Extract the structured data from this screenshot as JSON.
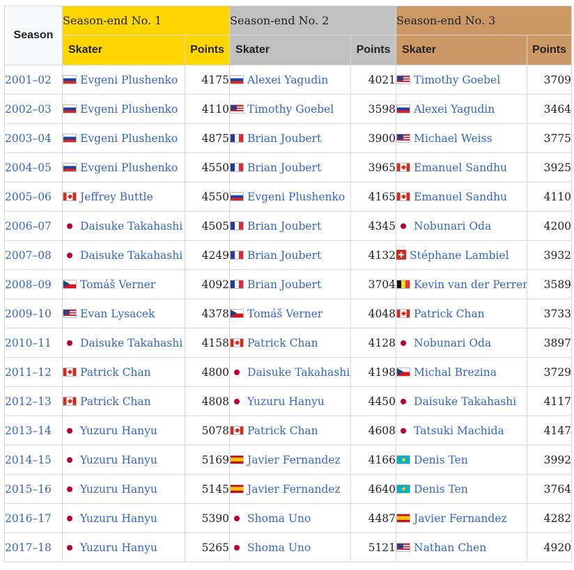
{
  "headers": {
    "season": "Season",
    "no1": "Season-end No. 1",
    "no2": "Season-end No. 2",
    "no3": "Season-end No. 3",
    "skater": "Skater",
    "points": "Points"
  },
  "colors": {
    "gold": "#ffd700",
    "silver": "#c0c0c0",
    "bronze": "#cc9966",
    "link": "#3366cc"
  },
  "rows": [
    {
      "season": "2001–02",
      "s1": {
        "name": "Evgeni Plushenko",
        "flag": "rus",
        "points": "4175"
      },
      "s2": {
        "name": "Alexei Yagudin",
        "flag": "rus",
        "points": "4021"
      },
      "s3": {
        "name": "Timothy Goebel",
        "flag": "usa",
        "points": "3709"
      }
    },
    {
      "season": "2002–03",
      "s1": {
        "name": "Evgeni Plushenko",
        "flag": "rus",
        "points": "4110"
      },
      "s2": {
        "name": "Timothy Goebel",
        "flag": "usa",
        "points": "3598"
      },
      "s3": {
        "name": "Alexei Yagudin",
        "flag": "rus",
        "points": "3464"
      }
    },
    {
      "season": "2003–04",
      "s1": {
        "name": "Evgeni Plushenko",
        "flag": "rus",
        "points": "4875"
      },
      "s2": {
        "name": "Brian Joubert",
        "flag": "fra",
        "points": "3900"
      },
      "s3": {
        "name": "Michael Weiss",
        "flag": "usa",
        "points": "3775"
      }
    },
    {
      "season": "2004–05",
      "s1": {
        "name": "Evgeni Plushenko",
        "flag": "rus",
        "points": "4550"
      },
      "s2": {
        "name": "Brian Joubert",
        "flag": "fra",
        "points": "3965"
      },
      "s3": {
        "name": "Emanuel Sandhu",
        "flag": "can",
        "points": "3925"
      }
    },
    {
      "season": "2005–06",
      "s1": {
        "name": "Jeffrey Buttle",
        "flag": "can",
        "points": "4550"
      },
      "s2": {
        "name": "Evgeni Plushenko",
        "flag": "rus",
        "points": "4165"
      },
      "s3": {
        "name": "Emanuel Sandhu",
        "flag": "can",
        "points": "4110"
      }
    },
    {
      "season": "2006–07",
      "s1": {
        "name": "Daisuke Takahashi",
        "flag": "jpn",
        "points": "4505"
      },
      "s2": {
        "name": "Brian Joubert",
        "flag": "fra",
        "points": "4345"
      },
      "s3": {
        "name": "Nobunari Oda",
        "flag": "jpn",
        "points": "4200"
      }
    },
    {
      "season": "2007–08",
      "s1": {
        "name": "Daisuke Takahashi",
        "flag": "jpn",
        "points": "4249"
      },
      "s2": {
        "name": "Brian Joubert",
        "flag": "fra",
        "points": "4132"
      },
      "s3": {
        "name": "Stéphane Lambiel",
        "flag": "sui",
        "points": "3932"
      }
    },
    {
      "season": "2008–09",
      "s1": {
        "name": "Tomáš Verner",
        "flag": "cze",
        "points": "4092"
      },
      "s2": {
        "name": "Brian Joubert",
        "flag": "fra",
        "points": "3704"
      },
      "s3": {
        "name": "Kevin van der Perren",
        "flag": "bel",
        "points": "3589"
      }
    },
    {
      "season": "2009–10",
      "s1": {
        "name": "Evan Lysacek",
        "flag": "usa",
        "points": "4378"
      },
      "s2": {
        "name": "Tomáš Verner",
        "flag": "cze",
        "points": "4048"
      },
      "s3": {
        "name": "Patrick Chan",
        "flag": "can",
        "points": "3733"
      }
    },
    {
      "season": "2010–11",
      "s1": {
        "name": "Daisuke Takahashi",
        "flag": "jpn",
        "points": "4158"
      },
      "s2": {
        "name": "Patrick Chan",
        "flag": "can",
        "points": "4128"
      },
      "s3": {
        "name": "Nobunari Oda",
        "flag": "jpn",
        "points": "3897"
      }
    },
    {
      "season": "2011–12",
      "s1": {
        "name": "Patrick Chan",
        "flag": "can",
        "points": "4800"
      },
      "s2": {
        "name": "Daisuke Takahashi",
        "flag": "jpn",
        "points": "4198"
      },
      "s3": {
        "name": "Michal Brezina",
        "flag": "cze",
        "points": "3729"
      }
    },
    {
      "season": "2012–13",
      "s1": {
        "name": "Patrick Chan",
        "flag": "can",
        "points": "4808"
      },
      "s2": {
        "name": "Yuzuru Hanyu",
        "flag": "jpn",
        "points": "4450"
      },
      "s3": {
        "name": "Daisuke Takahashi",
        "flag": "jpn",
        "points": "4117"
      }
    },
    {
      "season": "2013–14",
      "s1": {
        "name": "Yuzuru Hanyu",
        "flag": "jpn",
        "points": "5078"
      },
      "s2": {
        "name": "Patrick Chan",
        "flag": "can",
        "points": "4608"
      },
      "s3": {
        "name": "Tatsuki Machida",
        "flag": "jpn",
        "points": "4147"
      }
    },
    {
      "season": "2014–15",
      "s1": {
        "name": "Yuzuru Hanyu",
        "flag": "jpn",
        "points": "5169"
      },
      "s2": {
        "name": "Javier Fernandez",
        "flag": "esp",
        "points": "4166"
      },
      "s3": {
        "name": "Denis Ten",
        "flag": "kaz",
        "points": "3992"
      }
    },
    {
      "season": "2015–16",
      "s1": {
        "name": "Yuzuru Hanyu",
        "flag": "jpn",
        "points": "5145"
      },
      "s2": {
        "name": "Javier Fernandez",
        "flag": "esp",
        "points": "4640"
      },
      "s3": {
        "name": "Denis Ten",
        "flag": "kaz",
        "points": "3764"
      }
    },
    {
      "season": "2016–17",
      "s1": {
        "name": "Yuzuru Hanyu",
        "flag": "jpn",
        "points": "5390"
      },
      "s2": {
        "name": "Shoma Uno",
        "flag": "jpn",
        "points": "4487"
      },
      "s3": {
        "name": "Javier Fernandez",
        "flag": "esp",
        "points": "4282"
      }
    },
    {
      "season": "2017–18",
      "s1": {
        "name": "Yuzuru Hanyu",
        "flag": "jpn",
        "points": "5265"
      },
      "s2": {
        "name": "Shoma Uno",
        "flag": "jpn",
        "points": "5121"
      },
      "s3": {
        "name": "Nathan Chen",
        "flag": "usa",
        "points": "4920"
      }
    }
  ]
}
